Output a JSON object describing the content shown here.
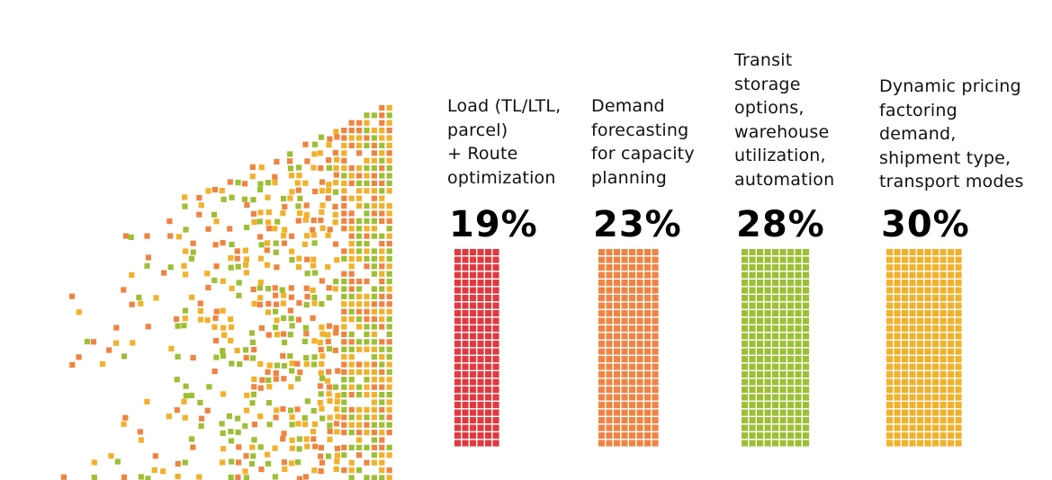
{
  "chart_data": {
    "type": "bar",
    "title": "",
    "categories": [
      "Load (TL/LTL, parcel) + Route optimization",
      "Demand forecasting for capacity planning",
      "Transit storage options, warehouse utilization, automation",
      "Dynamic pricing factoring demand, shipment type, transport modes"
    ],
    "series": [
      {
        "values": [
          19,
          23,
          28,
          30
        ],
        "labels": [
          "19%",
          "23%",
          "28%",
          "30%"
        ]
      }
    ],
    "colors": [
      "#e0393e",
      "#ef8442",
      "#9dbf36",
      "#f2b12c"
    ],
    "columns": [
      {
        "label_lines": [
          "Load (TL/LTL,",
          "parcel)",
          "+ Route",
          "optimization"
        ],
        "value": 19,
        "value_label": "19%",
        "color": "#e0393e"
      },
      {
        "label_lines": [
          "Demand",
          "forecasting",
          "for capacity",
          "planning"
        ],
        "value": 23,
        "value_label": "23%",
        "color": "#ef8442"
      },
      {
        "label_lines": [
          "Transit",
          "storage",
          "options,",
          "warehouse",
          "utilization,",
          "automation"
        ],
        "value": 28,
        "value_label": "28%",
        "color": "#9dbf36"
      },
      {
        "label_lines": [
          "Dynamic pricing",
          "factoring",
          "demand,",
          "shipment type,",
          "transport modes"
        ],
        "value": 30,
        "value_label": "30%",
        "color": "#f2b12c"
      }
    ],
    "decoration": {
      "type": "scattered-squares",
      "colors": [
        "#9dbf36",
        "#ef8442",
        "#f2b12c"
      ]
    }
  }
}
